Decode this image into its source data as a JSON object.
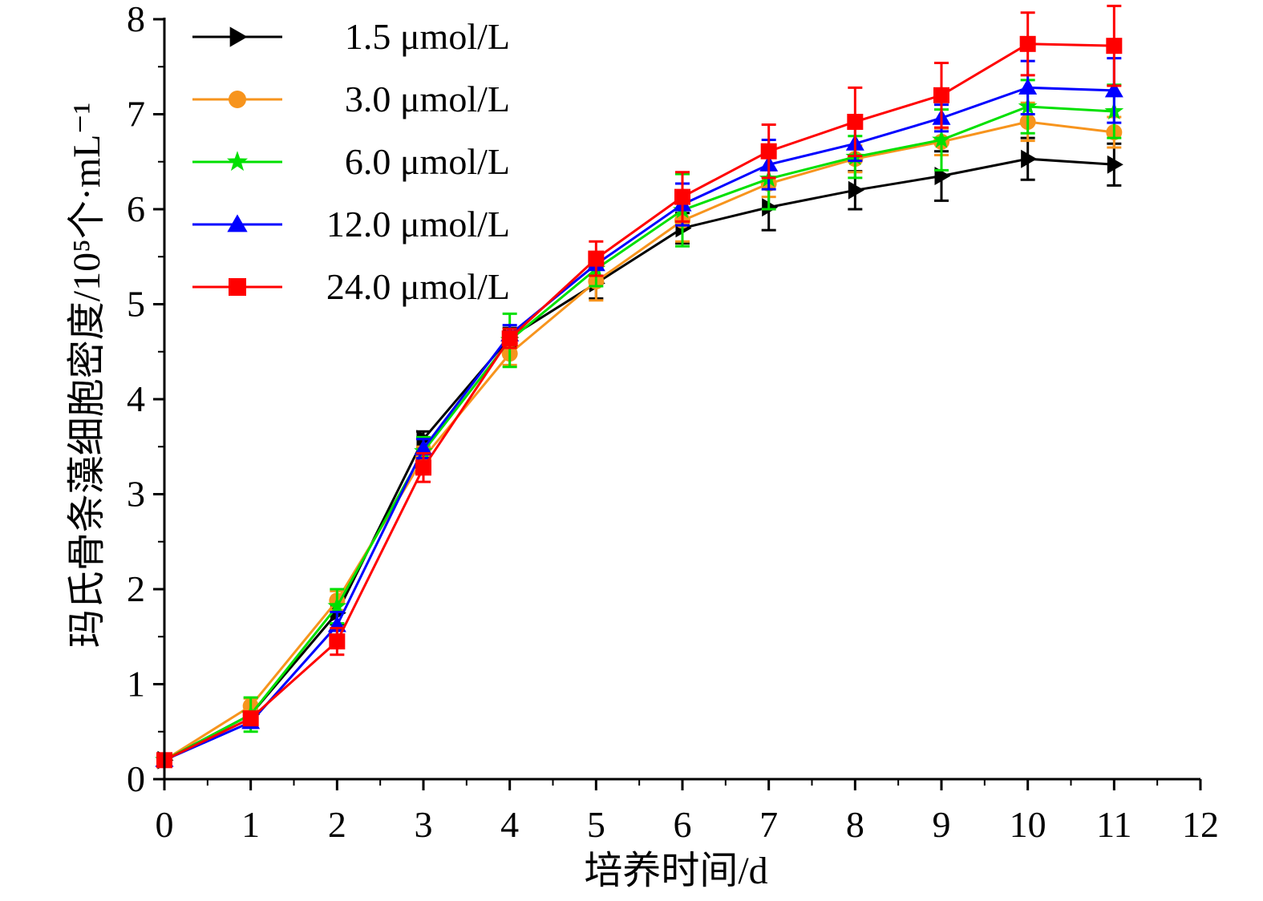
{
  "chart_data": {
    "type": "line",
    "xlabel": "培养时间/d",
    "ylabel": "玛氏骨条藻细胞密度/10⁵个·mL⁻¹",
    "xlim": [
      0,
      12
    ],
    "ylim": [
      0,
      8
    ],
    "x_ticks": [
      "0",
      "1",
      "2",
      "3",
      "4",
      "5",
      "6",
      "7",
      "8",
      "9",
      "10",
      "11",
      "12"
    ],
    "y_ticks": [
      "0",
      "1",
      "2",
      "3",
      "4",
      "5",
      "6",
      "7",
      "8"
    ],
    "grid": false,
    "legend_position": "top-left",
    "x": [
      0,
      1,
      2,
      3,
      4,
      5,
      6,
      7,
      8,
      9,
      10,
      11
    ],
    "series": [
      {
        "name": "1.5 μmol/L",
        "color": "#000000",
        "marker": "triangle-right",
        "values": [
          0.2,
          0.68,
          1.75,
          3.58,
          4.65,
          5.22,
          5.8,
          6.02,
          6.2,
          6.35,
          6.53,
          6.47
        ],
        "errors": [
          0.04,
          0.05,
          0.12,
          0.08,
          0.1,
          0.16,
          0.16,
          0.24,
          0.2,
          0.26,
          0.22,
          0.22
        ]
      },
      {
        "name": "3.0 μmol/L",
        "color": "#F7941D",
        "marker": "circle",
        "values": [
          0.2,
          0.77,
          1.88,
          3.38,
          4.48,
          5.24,
          5.88,
          6.27,
          6.53,
          6.71,
          6.92,
          6.81
        ],
        "errors": [
          0.04,
          0.08,
          0.1,
          0.12,
          0.12,
          0.2,
          0.22,
          0.14,
          0.14,
          0.14,
          0.2,
          0.16
        ]
      },
      {
        "name": "6.0 μmol/L",
        "color": "#00E000",
        "marker": "star",
        "values": [
          0.2,
          0.68,
          1.82,
          3.45,
          4.62,
          5.37,
          5.99,
          6.32,
          6.55,
          6.73,
          7.08,
          7.03
        ],
        "errors": [
          0.04,
          0.18,
          0.18,
          0.15,
          0.28,
          0.18,
          0.38,
          0.32,
          0.22,
          0.32,
          0.28,
          0.28
        ]
      },
      {
        "name": "12.0 μmol/L",
        "color": "#0000FF",
        "marker": "triangle-up",
        "values": [
          0.2,
          0.6,
          1.62,
          3.48,
          4.68,
          5.42,
          6.05,
          6.47,
          6.69,
          6.96,
          7.28,
          7.25
        ],
        "errors": [
          0.04,
          0.06,
          0.14,
          0.1,
          0.1,
          0.12,
          0.22,
          0.26,
          0.18,
          0.14,
          0.28,
          0.34
        ]
      },
      {
        "name": "24.0 μmol/L",
        "color": "#FF0000",
        "marker": "square",
        "values": [
          0.2,
          0.64,
          1.45,
          3.28,
          4.64,
          5.48,
          6.13,
          6.61,
          6.92,
          7.2,
          7.74,
          7.72
        ],
        "errors": [
          0.04,
          0.06,
          0.14,
          0.15,
          0.1,
          0.18,
          0.26,
          0.28,
          0.36,
          0.34,
          0.33,
          0.42
        ]
      }
    ]
  }
}
